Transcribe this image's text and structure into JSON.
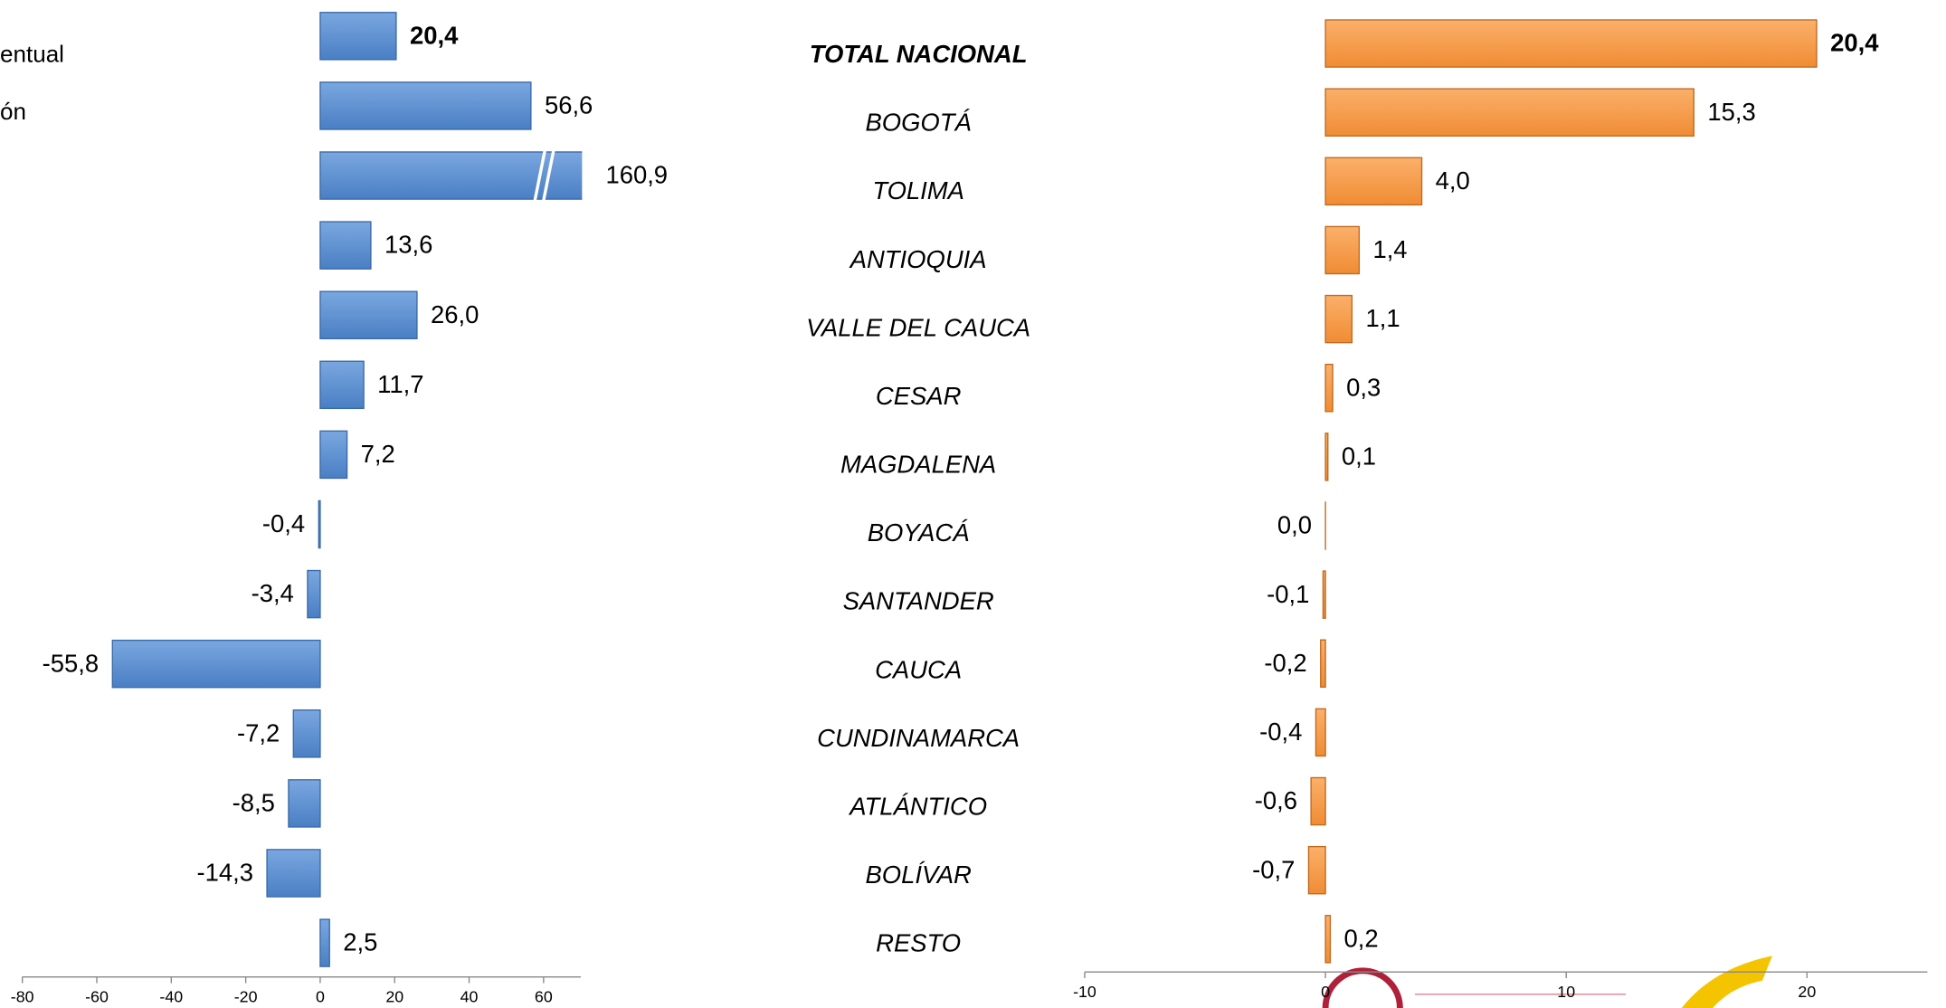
{
  "chart_data": [
    {
      "type": "bar",
      "orientation": "horizontal",
      "color": "#558ed5",
      "categories": [
        "TOTAL NACIONAL",
        "BOGOTÁ",
        "TOLIMA",
        "ANTIOQUIA",
        "VALLE DEL CAUCA",
        "CESAR",
        "MAGDALENA",
        "BOYACÁ",
        "SANTANDER",
        "CAUCA",
        "CUNDINAMARCA",
        "ATLÁNTICO",
        "BOLÍVAR",
        "RESTO"
      ],
      "values": [
        20.4,
        56.6,
        160.9,
        13.6,
        26.0,
        11.7,
        7.2,
        -0.4,
        -3.4,
        -55.8,
        -7.2,
        -8.5,
        -14.3,
        2.5
      ],
      "value_labels": [
        "20,4",
        "56,6",
        "160,9",
        "13,6",
        "26,0",
        "11,7",
        "7,2",
        "-0,4",
        "-3,4",
        "-55,8",
        "-7,2",
        "-8,5",
        "-14,3",
        "2,5"
      ],
      "xlim": [
        -80,
        70
      ],
      "xticks": [
        -80,
        -60,
        -40,
        -20,
        0,
        20,
        40,
        60
      ],
      "legend_fragments": [
        "entual",
        "ón"
      ]
    },
    {
      "type": "bar",
      "orientation": "horizontal",
      "color": "#f79646",
      "values": [
        20.4,
        15.3,
        4.0,
        1.4,
        1.1,
        0.3,
        0.1,
        0.0,
        -0.1,
        -0.2,
        -0.4,
        -0.6,
        -0.7,
        0.2
      ],
      "value_labels": [
        "20,4",
        "15,3",
        "4,0",
        "1,4",
        "1,1",
        "0,3",
        "0,1",
        "0,0",
        "-0,1",
        "-0,2",
        "-0,4",
        "-0,6",
        "-0,7",
        "0,2"
      ],
      "xlim": [
        -10,
        25
      ],
      "xticks": [
        -10,
        0,
        10,
        20
      ]
    }
  ]
}
